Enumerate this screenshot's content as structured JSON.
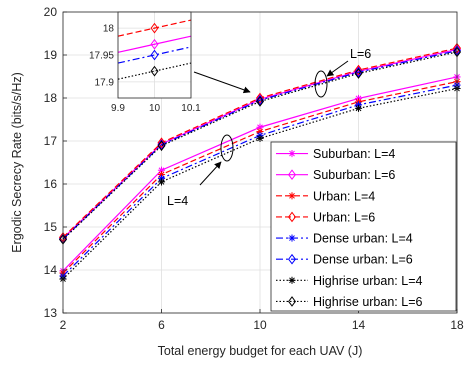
{
  "chart_data": {
    "type": "line",
    "xlabel": "Total energy budget for each UAV  (J)",
    "ylabel": "Ergodic Secrecy Rate (bits/s/Hz)",
    "xlim": [
      2,
      18
    ],
    "ylim": [
      13,
      20
    ],
    "xticks": [
      2,
      6,
      10,
      14,
      18
    ],
    "yticks": [
      13,
      14,
      15,
      16,
      17,
      18,
      19,
      20
    ],
    "x": [
      2,
      6,
      10,
      14,
      18
    ],
    "grid": true,
    "legend_position": "lower-right",
    "series": [
      {
        "name": "Suburban: L=4",
        "color": "#ff00ff",
        "dash": "solid",
        "marker": "star",
        "values": [
          13.98,
          16.32,
          17.32,
          17.99,
          18.49
        ]
      },
      {
        "name": "Suburban: L=6",
        "color": "#ff00ff",
        "dash": "solid",
        "marker": "diamond",
        "values": [
          14.74,
          16.93,
          17.97,
          18.62,
          19.13
        ]
      },
      {
        "name": "Urban: L=4",
        "color": "#ff0000",
        "dash": "dashed",
        "marker": "star",
        "values": [
          13.93,
          16.22,
          17.22,
          17.91,
          18.38
        ]
      },
      {
        "name": "Urban: L=6",
        "color": "#ff0000",
        "dash": "dashed",
        "marker": "diamond",
        "values": [
          14.76,
          16.96,
          18.0,
          18.65,
          19.16
        ]
      },
      {
        "name": "Dense urban: L=4",
        "color": "#0000ff",
        "dash": "dashdot",
        "marker": "star",
        "values": [
          13.86,
          16.13,
          17.13,
          17.84,
          18.3
        ]
      },
      {
        "name": "Dense urban: L=6",
        "color": "#0000ff",
        "dash": "dashdot",
        "marker": "diamond",
        "values": [
          14.72,
          16.91,
          17.95,
          18.6,
          19.1
        ]
      },
      {
        "name": "Highrise urban: L=4",
        "color": "#000000",
        "dash": "dotted",
        "marker": "star",
        "values": [
          13.79,
          16.05,
          17.06,
          17.76,
          18.22
        ]
      },
      {
        "name": "Highrise urban: L=6",
        "color": "#000000",
        "dash": "dotted",
        "marker": "diamond",
        "values": [
          14.71,
          16.89,
          17.92,
          18.57,
          19.07
        ]
      }
    ],
    "annotations": [
      {
        "text": "L=6"
      },
      {
        "text": "L=4"
      }
    ],
    "inset": {
      "xlim": [
        9.9,
        10.1
      ],
      "ylim": [
        17.87,
        18.03
      ],
      "xticks": [
        9.9,
        10,
        10.1
      ],
      "xticklabels": [
        "9.9",
        "10",
        "10.1"
      ],
      "yticks": [
        17.9,
        17.95,
        18
      ],
      "yticklabels": [
        "17.9",
        "17.95",
        "18"
      ],
      "x": [
        9.9,
        10,
        10.1
      ],
      "series": [
        {
          "name": "Suburban: L=6",
          "values": [
            17.955,
            17.97,
            17.985
          ]
        },
        {
          "name": "Urban: L=6",
          "values": [
            17.985,
            18.0,
            18.015
          ]
        },
        {
          "name": "Dense urban: L=6",
          "values": [
            17.935,
            17.95,
            17.965
          ]
        },
        {
          "name": "Highrise urban: L=6",
          "values": [
            17.905,
            17.92,
            17.935
          ]
        }
      ]
    }
  }
}
